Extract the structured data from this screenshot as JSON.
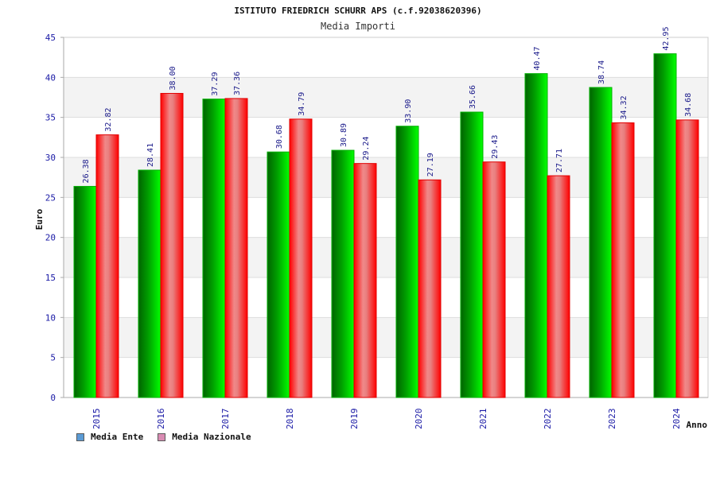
{
  "chart_data": {
    "type": "bar",
    "title": "ISTITUTO FRIEDRICH SCHURR APS (c.f.92038620396)",
    "subtitle": "Media Importi",
    "xlabel": "Anno",
    "ylabel": "Euro",
    "ylim": [
      0,
      45
    ],
    "yticks": [
      0,
      5,
      10,
      15,
      20,
      25,
      30,
      35,
      40,
      45
    ],
    "categories": [
      "2015",
      "2016",
      "2017",
      "2018",
      "2019",
      "2020",
      "2021",
      "2022",
      "2023",
      "2024"
    ],
    "series": [
      {
        "name": "Media Ente",
        "color": "#00c000",
        "values": [
          26.38,
          28.41,
          37.29,
          30.68,
          30.89,
          33.9,
          35.66,
          40.47,
          38.74,
          42.95
        ],
        "labels": [
          "26.38",
          "28.41",
          "37.29",
          "30.68",
          "30.89",
          "33.90",
          "35.66",
          "40.47",
          "38.74",
          "42.95"
        ]
      },
      {
        "name": "Media Nazionale",
        "color": "#ff0000",
        "values": [
          32.82,
          38.0,
          37.36,
          34.79,
          29.24,
          27.19,
          29.43,
          27.71,
          34.32,
          34.68
        ],
        "labels": [
          "32.82",
          "38.00",
          "37.36",
          "34.79",
          "29.24",
          "27.19",
          "29.43",
          "27.71",
          "34.32",
          "34.68"
        ]
      }
    ],
    "grid": true,
    "legend_position": "bottom-left"
  },
  "legend": {
    "items": [
      {
        "label": "Media Ente",
        "color": "#5b9bd5"
      },
      {
        "label": "Media Nazionale",
        "color": "#d98cb3"
      }
    ]
  }
}
